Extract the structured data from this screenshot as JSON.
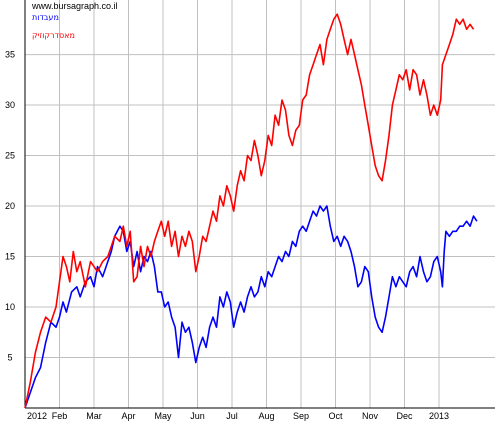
{
  "chart_data": {
    "type": "line",
    "source_label": "www.bursagraph.co.il",
    "title": "",
    "xlabel": "",
    "ylabel": "",
    "x_tick_labels": [
      "2012",
      "Feb",
      "Mar",
      "Apr",
      "May",
      "Jun",
      "Jul",
      "Aug",
      "Sep",
      "Oct",
      "Nov",
      "Dec",
      "2013"
    ],
    "y_ticks": [
      5,
      10,
      15,
      20,
      25,
      30,
      35
    ],
    "ylim": [
      0,
      40
    ],
    "xlim": [
      0,
      13.4
    ],
    "grid": true,
    "legend_position": "top-left",
    "series": [
      {
        "name": "מעבדות",
        "color": "#0000ff",
        "points": [
          [
            0,
            0
          ],
          [
            0.15,
            1.5
          ],
          [
            0.3,
            3
          ],
          [
            0.45,
            4
          ],
          [
            0.6,
            6.5
          ],
          [
            0.75,
            8.5
          ],
          [
            0.9,
            8
          ],
          [
            1.0,
            9
          ],
          [
            1.1,
            10.5
          ],
          [
            1.2,
            9.5
          ],
          [
            1.35,
            11.5
          ],
          [
            1.5,
            12
          ],
          [
            1.6,
            11
          ],
          [
            1.75,
            12.5
          ],
          [
            1.9,
            13
          ],
          [
            2.0,
            12
          ],
          [
            2.1,
            14
          ],
          [
            2.25,
            13
          ],
          [
            2.4,
            14.5
          ],
          [
            2.5,
            15.5
          ],
          [
            2.6,
            17
          ],
          [
            2.75,
            18
          ],
          [
            2.85,
            17.5
          ],
          [
            2.95,
            15.5
          ],
          [
            3.05,
            16.5
          ],
          [
            3.15,
            14
          ],
          [
            3.25,
            15.5
          ],
          [
            3.35,
            13.5
          ],
          [
            3.45,
            15
          ],
          [
            3.55,
            14.5
          ],
          [
            3.65,
            15.5
          ],
          [
            3.75,
            14
          ],
          [
            3.85,
            11.5
          ],
          [
            3.95,
            11.5
          ],
          [
            4.05,
            10
          ],
          [
            4.15,
            10.5
          ],
          [
            4.25,
            9
          ],
          [
            4.35,
            8
          ],
          [
            4.45,
            5
          ],
          [
            4.55,
            8.5
          ],
          [
            4.65,
            7.5
          ],
          [
            4.75,
            8
          ],
          [
            4.85,
            6.5
          ],
          [
            4.95,
            4.5
          ],
          [
            5.05,
            6
          ],
          [
            5.15,
            7
          ],
          [
            5.25,
            6
          ],
          [
            5.35,
            8
          ],
          [
            5.45,
            9
          ],
          [
            5.55,
            8
          ],
          [
            5.65,
            11
          ],
          [
            5.75,
            10
          ],
          [
            5.85,
            11.5
          ],
          [
            5.95,
            10.5
          ],
          [
            6.05,
            8
          ],
          [
            6.15,
            9.5
          ],
          [
            6.25,
            10.5
          ],
          [
            6.35,
            9.5
          ],
          [
            6.45,
            11
          ],
          [
            6.55,
            12
          ],
          [
            6.65,
            11
          ],
          [
            6.75,
            11.5
          ],
          [
            6.85,
            13
          ],
          [
            6.95,
            12
          ],
          [
            7.05,
            13.5
          ],
          [
            7.15,
            13
          ],
          [
            7.25,
            14
          ],
          [
            7.35,
            15
          ],
          [
            7.45,
            14.5
          ],
          [
            7.55,
            15.5
          ],
          [
            7.65,
            15
          ],
          [
            7.75,
            16.5
          ],
          [
            7.85,
            16
          ],
          [
            7.95,
            17.5
          ],
          [
            8.05,
            18
          ],
          [
            8.15,
            17.5
          ],
          [
            8.25,
            18.5
          ],
          [
            8.35,
            19.5
          ],
          [
            8.45,
            19
          ],
          [
            8.55,
            20
          ],
          [
            8.65,
            19.5
          ],
          [
            8.75,
            20
          ],
          [
            8.85,
            18
          ],
          [
            8.95,
            16.5
          ],
          [
            9.05,
            17
          ],
          [
            9.15,
            16
          ],
          [
            9.25,
            17
          ],
          [
            9.35,
            16.5
          ],
          [
            9.45,
            15.5
          ],
          [
            9.55,
            14
          ],
          [
            9.65,
            12
          ],
          [
            9.75,
            12.5
          ],
          [
            9.85,
            14
          ],
          [
            9.95,
            13.5
          ],
          [
            10.05,
            11
          ],
          [
            10.15,
            9
          ],
          [
            10.25,
            8
          ],
          [
            10.35,
            7.5
          ],
          [
            10.45,
            9
          ],
          [
            10.55,
            11
          ],
          [
            10.65,
            13
          ],
          [
            10.75,
            12
          ],
          [
            10.85,
            13
          ],
          [
            10.95,
            12.5
          ],
          [
            11.05,
            12
          ],
          [
            11.15,
            13.5
          ],
          [
            11.25,
            14
          ],
          [
            11.35,
            13
          ],
          [
            11.45,
            15
          ],
          [
            11.55,
            13.5
          ],
          [
            11.65,
            12.5
          ],
          [
            11.75,
            13
          ],
          [
            11.85,
            14.5
          ],
          [
            11.95,
            15
          ],
          [
            12.05,
            13.5
          ],
          [
            12.1,
            12
          ],
          [
            12.15,
            15.5
          ],
          [
            12.2,
            17.5
          ],
          [
            12.3,
            17
          ],
          [
            12.4,
            17.5
          ],
          [
            12.5,
            17.5
          ],
          [
            12.6,
            18
          ],
          [
            12.7,
            18
          ],
          [
            12.8,
            18.5
          ],
          [
            12.9,
            18
          ],
          [
            13.0,
            19
          ],
          [
            13.1,
            18.5
          ]
        ]
      },
      {
        "name": "מאסדרקוזיק",
        "color": "#ff0000",
        "points": [
          [
            0,
            0
          ],
          [
            0.15,
            2.5
          ],
          [
            0.3,
            5.5
          ],
          [
            0.45,
            7.5
          ],
          [
            0.6,
            9
          ],
          [
            0.75,
            8.5
          ],
          [
            0.9,
            10
          ],
          [
            1.0,
            12.5
          ],
          [
            1.1,
            15
          ],
          [
            1.2,
            14
          ],
          [
            1.3,
            12.5
          ],
          [
            1.4,
            15.5
          ],
          [
            1.5,
            13.5
          ],
          [
            1.6,
            14.5
          ],
          [
            1.75,
            12
          ],
          [
            1.9,
            14.5
          ],
          [
            2.0,
            14
          ],
          [
            2.1,
            13.5
          ],
          [
            2.25,
            14.5
          ],
          [
            2.4,
            15
          ],
          [
            2.5,
            16
          ],
          [
            2.6,
            17
          ],
          [
            2.75,
            16.5
          ],
          [
            2.85,
            18
          ],
          [
            2.95,
            16
          ],
          [
            3.05,
            17.5
          ],
          [
            3.15,
            12.5
          ],
          [
            3.25,
            13
          ],
          [
            3.35,
            16
          ],
          [
            3.45,
            14
          ],
          [
            3.55,
            16
          ],
          [
            3.65,
            15
          ],
          [
            3.75,
            16.5
          ],
          [
            3.85,
            17.5
          ],
          [
            3.95,
            18.5
          ],
          [
            4.05,
            17
          ],
          [
            4.15,
            18.5
          ],
          [
            4.25,
            16
          ],
          [
            4.35,
            17.5
          ],
          [
            4.45,
            15
          ],
          [
            4.55,
            17
          ],
          [
            4.65,
            16
          ],
          [
            4.75,
            17.5
          ],
          [
            4.85,
            16.5
          ],
          [
            4.95,
            13.5
          ],
          [
            5.05,
            15
          ],
          [
            5.15,
            17
          ],
          [
            5.25,
            16.5
          ],
          [
            5.35,
            18
          ],
          [
            5.45,
            19.5
          ],
          [
            5.55,
            18.5
          ],
          [
            5.65,
            21
          ],
          [
            5.75,
            20
          ],
          [
            5.85,
            22
          ],
          [
            5.95,
            21
          ],
          [
            6.05,
            19.5
          ],
          [
            6.15,
            22
          ],
          [
            6.25,
            23.5
          ],
          [
            6.35,
            22.5
          ],
          [
            6.45,
            25
          ],
          [
            6.55,
            24.5
          ],
          [
            6.65,
            26.5
          ],
          [
            6.75,
            25
          ],
          [
            6.85,
            23
          ],
          [
            6.95,
            24.5
          ],
          [
            7.05,
            27
          ],
          [
            7.15,
            26
          ],
          [
            7.25,
            29
          ],
          [
            7.35,
            28
          ],
          [
            7.45,
            30.5
          ],
          [
            7.55,
            29.5
          ],
          [
            7.65,
            27
          ],
          [
            7.75,
            26
          ],
          [
            7.85,
            27.5
          ],
          [
            7.95,
            28
          ],
          [
            8.05,
            30.5
          ],
          [
            8.15,
            31
          ],
          [
            8.25,
            33
          ],
          [
            8.35,
            34
          ],
          [
            8.45,
            35
          ],
          [
            8.55,
            36
          ],
          [
            8.65,
            34
          ],
          [
            8.75,
            36.5
          ],
          [
            8.85,
            37.5
          ],
          [
            8.95,
            38.5
          ],
          [
            9.05,
            39
          ],
          [
            9.15,
            38
          ],
          [
            9.25,
            36.5
          ],
          [
            9.35,
            35
          ],
          [
            9.45,
            36.5
          ],
          [
            9.55,
            35
          ],
          [
            9.65,
            33.5
          ],
          [
            9.75,
            32
          ],
          [
            9.85,
            30
          ],
          [
            9.95,
            28
          ],
          [
            10.05,
            26
          ],
          [
            10.15,
            24
          ],
          [
            10.25,
            23
          ],
          [
            10.35,
            22.5
          ],
          [
            10.45,
            24.5
          ],
          [
            10.55,
            27
          ],
          [
            10.65,
            30
          ],
          [
            10.75,
            31.5
          ],
          [
            10.85,
            33
          ],
          [
            10.95,
            32.5
          ],
          [
            11.05,
            33.5
          ],
          [
            11.15,
            31.5
          ],
          [
            11.25,
            33.5
          ],
          [
            11.35,
            33
          ],
          [
            11.45,
            31
          ],
          [
            11.55,
            32.5
          ],
          [
            11.65,
            31
          ],
          [
            11.75,
            29
          ],
          [
            11.85,
            30
          ],
          [
            11.95,
            29
          ],
          [
            12.05,
            30.5
          ],
          [
            12.1,
            34
          ],
          [
            12.2,
            35
          ],
          [
            12.3,
            36
          ],
          [
            12.4,
            37
          ],
          [
            12.5,
            38.5
          ],
          [
            12.6,
            38
          ],
          [
            12.7,
            38.5
          ],
          [
            12.8,
            37.5
          ],
          [
            12.9,
            38
          ],
          [
            13.0,
            37.5
          ]
        ]
      }
    ]
  }
}
